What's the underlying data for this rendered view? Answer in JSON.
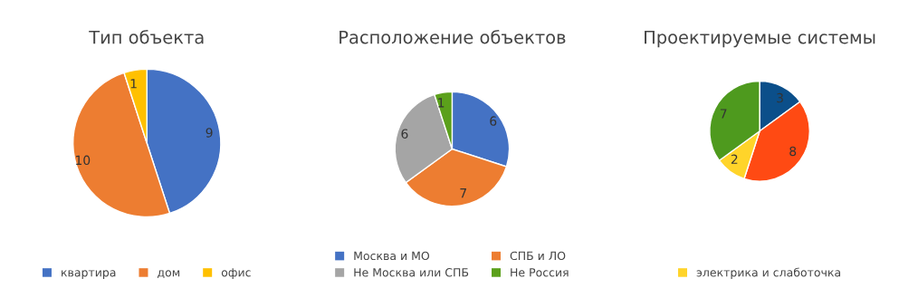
{
  "chart_data": [
    {
      "type": "pie",
      "title": "Тип объекта",
      "categories": [
        "квартира",
        "дом",
        "офис"
      ],
      "values": [
        9,
        10,
        1
      ],
      "colors": [
        "#4472c4",
        "#ed7d31",
        "#ffc000"
      ],
      "data_labels": true,
      "legend": "bottom"
    },
    {
      "type": "pie",
      "title": "Расположение объектов",
      "categories": [
        "Москва и МО",
        "СПБ и ЛО",
        "Не Москва или СПБ",
        "Не Россия"
      ],
      "values": [
        6,
        7,
        6,
        1
      ],
      "colors": [
        "#4472c4",
        "#ed7d31",
        "#a5a5a5",
        "#5ba01b"
      ],
      "data_labels": true,
      "legend": "bottom"
    },
    {
      "type": "pie",
      "title": "Проектируемые системы",
      "categories": [
        null,
        null,
        "электрика и слаботочка",
        null
      ],
      "values": [
        3,
        8,
        2,
        7
      ],
      "colors": [
        "#0b4f8a",
        "#ff4a13",
        "#ffd42a",
        "#4e9a1e"
      ],
      "data_labels": true,
      "legend": "bottom"
    }
  ]
}
